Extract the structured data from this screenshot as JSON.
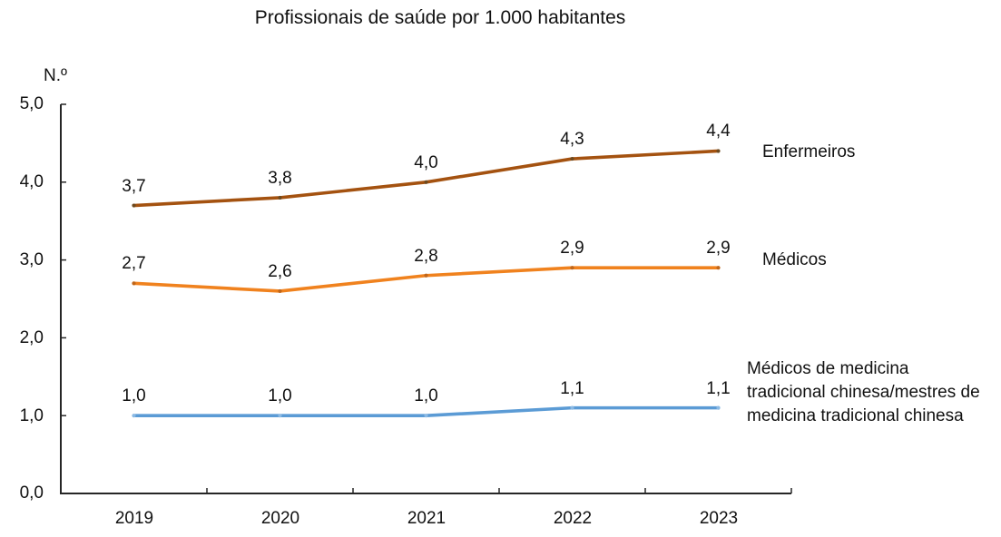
{
  "chart_data": {
    "type": "line",
    "title": "Profissionais de saúde por 1.000 habitantes",
    "y_unit": "N.º",
    "categories": [
      "2019",
      "2020",
      "2021",
      "2022",
      "2023"
    ],
    "y_tick_labels": [
      "5,0",
      "4,0",
      "3,0",
      "2,0",
      "1,0",
      "0,0"
    ],
    "ylim": [
      0,
      5
    ],
    "grid": false,
    "legend_position": "right-of-line-ends",
    "axis_color": "#262626",
    "text_color": "#111111",
    "series": [
      {
        "name": "Enfermeiros",
        "color": "#A45210",
        "marker_color": "#6E4A1F",
        "values": [
          3.7,
          3.8,
          4.0,
          4.3,
          4.4
        ],
        "value_labels": [
          "3,7",
          "3,8",
          "4,0",
          "4,3",
          "4,4"
        ]
      },
      {
        "name": "Médicos",
        "color": "#F0821E",
        "marker_color": "#C0661A",
        "values": [
          2.7,
          2.6,
          2.8,
          2.9,
          2.9
        ],
        "value_labels": [
          "2,7",
          "2,6",
          "2,8",
          "2,9",
          "2,9"
        ]
      },
      {
        "name": "Médicos de medicina tradicional chinesa/mestres de medicina tradicional chinesa",
        "name_lines": [
          "Médicos de medicina",
          "tradicional chinesa/mestres de",
          "medicina tradicional chinesa"
        ],
        "color": "#5B9BD5",
        "marker_color": "#8AB9E4",
        "values": [
          1.0,
          1.0,
          1.0,
          1.1,
          1.1
        ],
        "value_labels": [
          "1,0",
          "1,0",
          "1,0",
          "1,1",
          "1,1"
        ]
      }
    ]
  }
}
